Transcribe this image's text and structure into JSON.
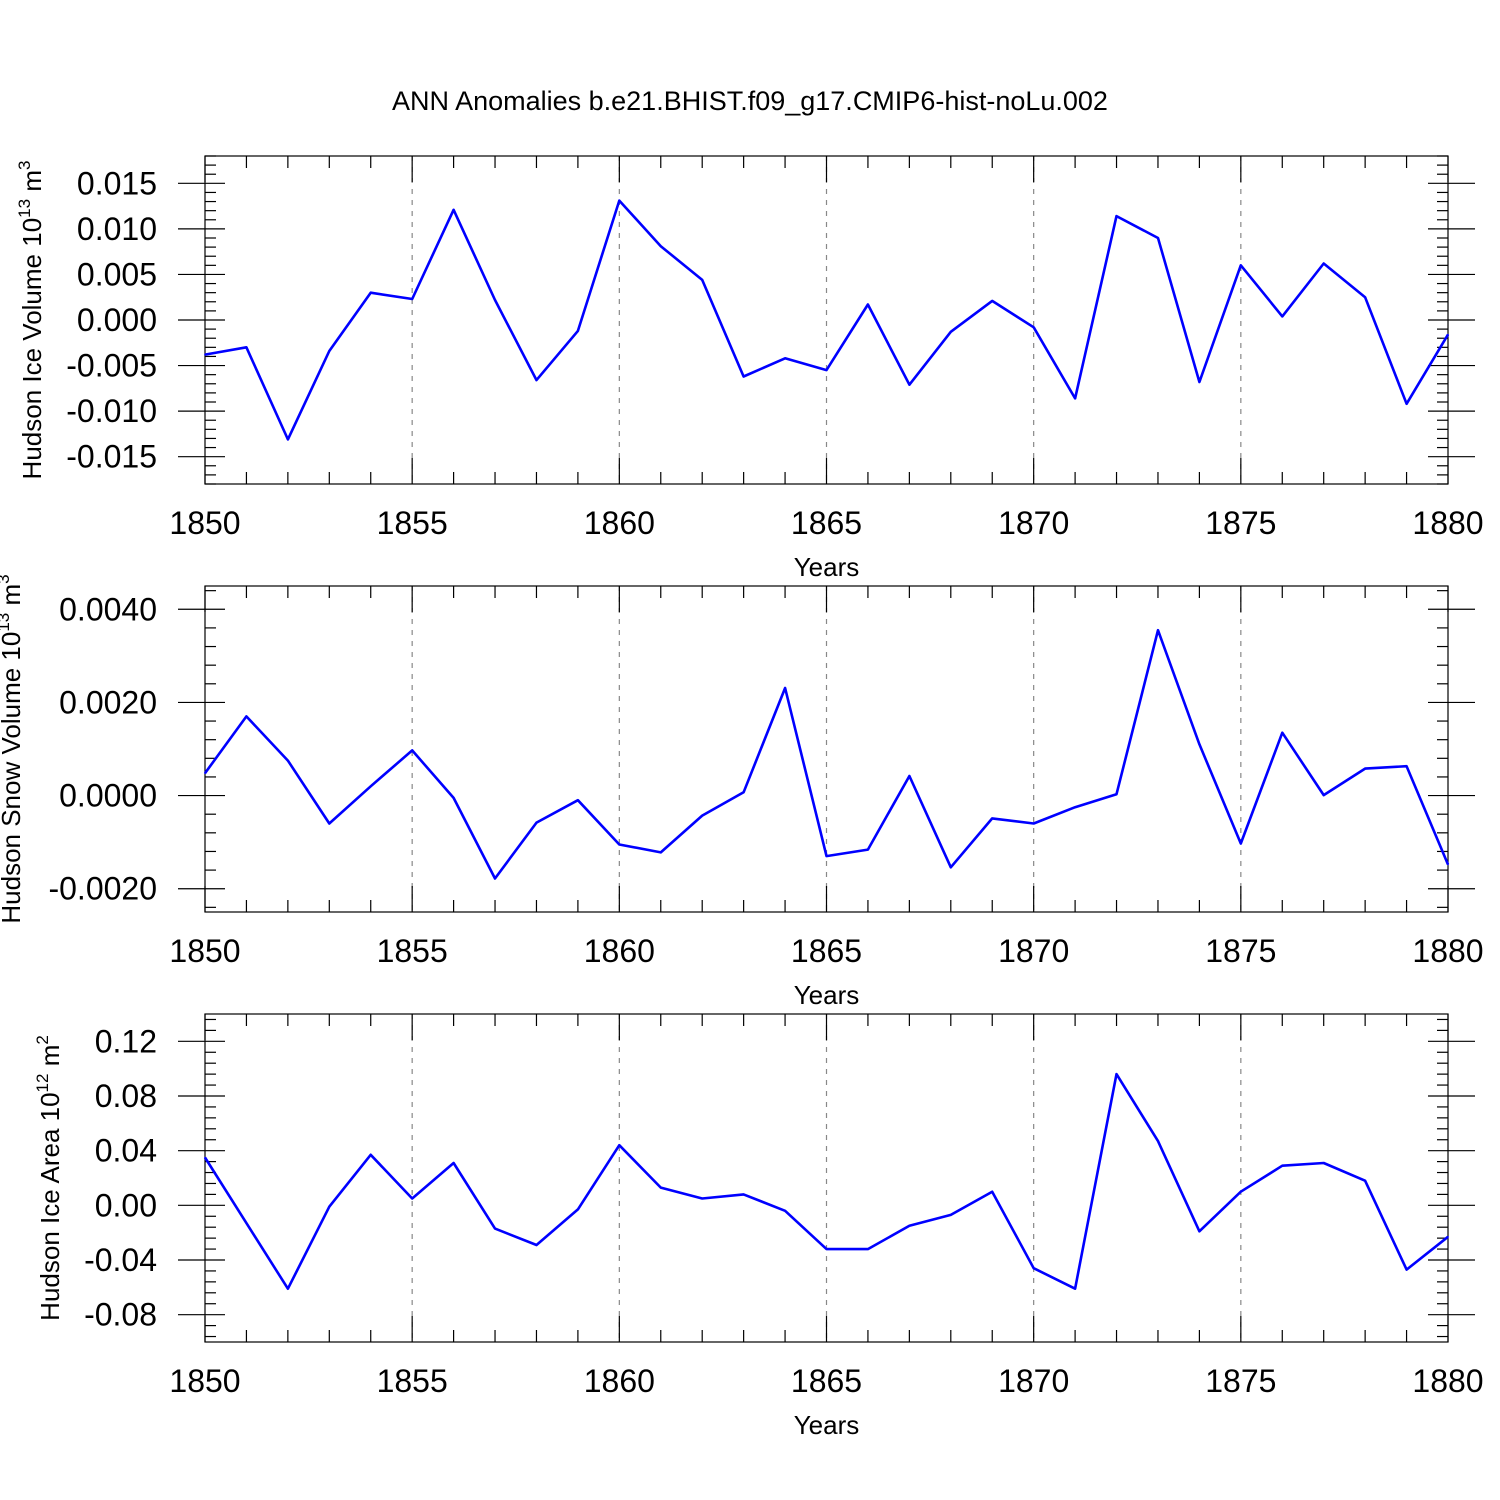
{
  "title": "ANN Anomalies b.e21.BHIST.f09_g17.CMIP6-hist-noLu.002",
  "colors": {
    "line": "#0000ff",
    "axis": "#000000",
    "grid": "#888888"
  },
  "chart_data": [
    {
      "type": "line",
      "ylabel": "Hudson Ice Volume 10",
      "ylabel_exp": "13",
      "ylabel_unit": " m",
      "ylabel_unit_exp": "3",
      "xlabel": "Years",
      "xlim": [
        1850,
        1880
      ],
      "ylim": [
        -0.018,
        0.018
      ],
      "yticks": [
        -0.015,
        -0.01,
        -0.005,
        0.0,
        0.005,
        0.01,
        0.015
      ],
      "ytick_labels": [
        "-0.015",
        "-0.010",
        "-0.005",
        "0.000",
        "0.005",
        "0.010",
        "0.015"
      ],
      "xticks": [
        1850,
        1855,
        1860,
        1865,
        1870,
        1875,
        1880
      ],
      "xtick_labels": [
        "1850",
        "1855",
        "1860",
        "1865",
        "1870",
        "1875",
        "1880"
      ],
      "x": [
        1850,
        1851,
        1852,
        1853,
        1854,
        1855,
        1856,
        1857,
        1858,
        1859,
        1860,
        1861,
        1862,
        1863,
        1864,
        1865,
        1866,
        1867,
        1868,
        1869,
        1870,
        1871,
        1872,
        1873,
        1874,
        1875,
        1876,
        1877,
        1878,
        1879,
        1880
      ],
      "series": [
        {
          "name": "Hudson Ice Volume",
          "values": [
            -0.0038,
            -0.003,
            -0.0131,
            -0.0034,
            0.003,
            0.0023,
            0.0121,
            0.0022,
            -0.0066,
            -0.0012,
            0.0131,
            0.0081,
            0.0044,
            -0.0062,
            -0.0042,
            -0.0055,
            0.0017,
            -0.0071,
            -0.0013,
            0.0021,
            -0.0008,
            -0.0086,
            0.0114,
            0.009,
            -0.0068,
            0.006,
            0.0004,
            0.0062,
            0.0025,
            -0.0092,
            -0.0016
          ]
        }
      ]
    },
    {
      "type": "line",
      "ylabel": "Hudson Snow Volume 10",
      "ylabel_exp": "13",
      "ylabel_unit": " m",
      "ylabel_unit_exp": "3",
      "xlabel": "Years",
      "xlim": [
        1850,
        1880
      ],
      "ylim": [
        -0.0025,
        0.0045
      ],
      "yticks": [
        -0.002,
        0.0,
        0.002,
        0.004
      ],
      "ytick_labels": [
        "-0.0020",
        "0.0000",
        "0.0020",
        "0.0040"
      ],
      "xticks": [
        1850,
        1855,
        1860,
        1865,
        1870,
        1875,
        1880
      ],
      "xtick_labels": [
        "1850",
        "1855",
        "1860",
        "1865",
        "1870",
        "1875",
        "1880"
      ],
      "x": [
        1850,
        1851,
        1852,
        1853,
        1854,
        1855,
        1856,
        1857,
        1858,
        1859,
        1860,
        1861,
        1862,
        1863,
        1864,
        1865,
        1866,
        1867,
        1868,
        1869,
        1870,
        1871,
        1872,
        1873,
        1874,
        1875,
        1876,
        1877,
        1878,
        1879,
        1880
      ],
      "series": [
        {
          "name": "Hudson Snow Volume",
          "values": [
            0.00048,
            0.0017,
            0.00075,
            -0.0006,
            0.0002,
            0.00097,
            -5e-05,
            -0.00178,
            -0.00058,
            -0.0001,
            -0.00105,
            -0.00122,
            -0.00043,
            7e-05,
            0.00231,
            -0.0013,
            -0.00116,
            0.00042,
            -0.00154,
            -0.00049,
            -0.0006,
            -0.00025,
            3e-05,
            0.00355,
            0.0011,
            -0.00103,
            0.00135,
            1e-05,
            0.00058,
            0.00063,
            -0.00148
          ]
        }
      ]
    },
    {
      "type": "line",
      "ylabel": "Hudson Ice Area 10",
      "ylabel_exp": "12",
      "ylabel_unit": " m",
      "ylabel_unit_exp": "2",
      "xlabel": "Years",
      "xlim": [
        1850,
        1880
      ],
      "ylim": [
        -0.1,
        0.14
      ],
      "yticks": [
        -0.08,
        -0.04,
        0.0,
        0.04,
        0.08,
        0.12
      ],
      "ytick_labels": [
        "-0.08",
        "-0.04",
        "0.00",
        "0.04",
        "0.08",
        "0.12"
      ],
      "xticks": [
        1850,
        1855,
        1860,
        1865,
        1870,
        1875,
        1880
      ],
      "xtick_labels": [
        "1850",
        "1855",
        "1860",
        "1865",
        "1870",
        "1875",
        "1880"
      ],
      "x": [
        1850,
        1851,
        1852,
        1853,
        1854,
        1855,
        1856,
        1857,
        1858,
        1859,
        1860,
        1861,
        1862,
        1863,
        1864,
        1865,
        1866,
        1867,
        1868,
        1869,
        1870,
        1871,
        1872,
        1873,
        1874,
        1875,
        1876,
        1877,
        1878,
        1879,
        1880
      ],
      "series": [
        {
          "name": "Hudson Ice Area",
          "values": [
            0.035,
            -0.013,
            -0.061,
            -0.001,
            0.037,
            0.005,
            0.031,
            -0.017,
            -0.029,
            -0.003,
            0.044,
            0.013,
            0.005,
            0.008,
            -0.004,
            -0.032,
            -0.032,
            -0.015,
            -0.007,
            0.01,
            -0.046,
            -0.061,
            0.096,
            0.047,
            -0.019,
            0.01,
            0.029,
            0.031,
            0.018,
            -0.047,
            -0.023
          ]
        }
      ]
    }
  ]
}
